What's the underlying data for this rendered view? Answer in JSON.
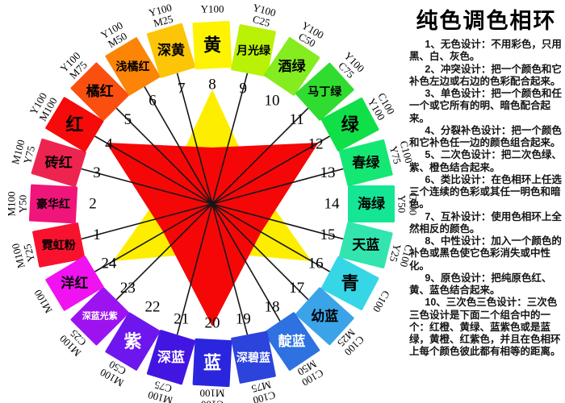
{
  "panel": {
    "title": "纯色调色相环",
    "items": [
      "1、无色设计：不用彩色，只用黑、白、灰色。",
      "2、冲突设计：把一个颜色和它补色左边或右边的色彩配合起来。",
      "3、单色设计：把一个颜色和任一个或它所有的明、暗色配合起来。",
      "4、分裂补色设计：把一个颜色和它补色任一边的颜色组合起来。",
      "5、二次色设计：把二次色绿、紫、橙色结合起来。",
      "6、类比设计：在色相环上任选三个连续的色彩或其任一明色和暗色。",
      "7、互补设计：使用色相环上全然相反的颜色。",
      "8、中性设计：加入一个颜色的补色或黑色使它色彩消失或中性化。",
      "9、原色设计：把纯原色红、黄、蓝色结合起来。",
      "10、三次色三色设计：三次色三色设计是下面二个组合中的一个：红橙、黄绿、蓝紫色或是蓝绿，黄橙、红紫色，并且在色相环上每个颜色彼此都有相等的距离。"
    ]
  },
  "wheel": {
    "line_color": "#161616",
    "swatches": [
      {
        "num": 1,
        "name": "霓虹粉",
        "code": [
          "M100",
          "Y25"
        ],
        "color": "#f8122e",
        "label_color": "#000000"
      },
      {
        "num": 2,
        "name": "豪华红",
        "code": [
          "M100",
          "Y50"
        ],
        "color": "#f0157b",
        "label_color": "#000000"
      },
      {
        "num": 3,
        "name": "砖红",
        "code": [
          "M100",
          "Y75"
        ],
        "color": "#ee2450",
        "label_color": "#000000"
      },
      {
        "num": 4,
        "name": "红",
        "code": [
          "Y100",
          "M100"
        ],
        "color": "#f70a0a",
        "label_color": "#000000"
      },
      {
        "num": 5,
        "name": "橘红",
        "code": [
          "Y100",
          "M75"
        ],
        "color": "#fa4f0f",
        "label_color": "#000000"
      },
      {
        "num": 6,
        "name": "浅橘红",
        "code": [
          "Y100",
          "M50"
        ],
        "color": "#fc8406",
        "label_color": "#000000"
      },
      {
        "num": 7,
        "name": "深黄",
        "code": [
          "Y100",
          "M25"
        ],
        "color": "#fcc508",
        "label_color": "#000000"
      },
      {
        "num": 8,
        "name": "黄",
        "code": [
          "Y100"
        ],
        "color": "#fdf303",
        "label_color": "#000000"
      },
      {
        "num": 9,
        "name": "月光绿",
        "code": [
          "Y100",
          "C25"
        ],
        "color": "#b9f205",
        "label_color": "#000000"
      },
      {
        "num": 10,
        "name": "酒绿",
        "code": [
          "Y100",
          "C50"
        ],
        "color": "#84ec1f",
        "label_color": "#000000"
      },
      {
        "num": 11,
        "name": "马丁绿",
        "code": [
          "Y100",
          "C75"
        ],
        "color": "#30dc30",
        "label_color": "#000000"
      },
      {
        "num": 12,
        "name": "绿",
        "code": [
          "C100",
          "Y100"
        ],
        "color": "#10df48",
        "label_color": "#000000"
      },
      {
        "num": 13,
        "name": "春绿",
        "code": [
          "C100",
          "Y75"
        ],
        "color": "#14e773",
        "label_color": "#000000"
      },
      {
        "num": 14,
        "name": "海绿",
        "code": [
          "C100",
          "Y50"
        ],
        "color": "#15e696",
        "label_color": "#000000"
      },
      {
        "num": 15,
        "name": "天蓝",
        "code": [
          "C100",
          "Y25"
        ],
        "color": "#32e5ae",
        "label_color": "#000000"
      },
      {
        "num": 16,
        "name": "青",
        "code": [
          "C100"
        ],
        "color": "#37d6e6",
        "label_color": "#000000"
      },
      {
        "num": 17,
        "name": "幼蓝",
        "code": [
          "C100",
          "M25"
        ],
        "color": "#3ba4e8",
        "label_color": "#000000"
      },
      {
        "num": 18,
        "name": "靛蓝",
        "code": [
          "C100",
          "M50"
        ],
        "color": "#2e71e1",
        "label_color": "#ffffff"
      },
      {
        "num": 19,
        "name": "深碧蓝",
        "code": [
          "C100",
          "M75"
        ],
        "color": "#2c43dc",
        "label_color": "#ffffff"
      },
      {
        "num": 20,
        "name": "蓝",
        "code": [
          "C100",
          "M100"
        ],
        "color": "#2a26de",
        "label_color": "#ffffff"
      },
      {
        "num": 21,
        "name": "深蓝",
        "code": [
          "M100",
          "C75"
        ],
        "color": "#4315e2",
        "label_color": "#ffffff"
      },
      {
        "num": 22,
        "name": "紫",
        "code": [
          "M100",
          "C50"
        ],
        "color": "#6d17ee",
        "label_color": "#ffffff"
      },
      {
        "num": 23,
        "name": "深蓝光紫",
        "code": [
          "M100",
          "C25"
        ],
        "color": "#9d13f0",
        "label_color": "#ffffff"
      },
      {
        "num": 24,
        "name": "洋红",
        "code": [
          "M100"
        ],
        "color": "#f012f0",
        "label_color": "#000000"
      }
    ],
    "complementary_lines": [
      [
        1,
        13
      ],
      [
        3,
        15
      ],
      [
        4,
        16
      ],
      [
        5,
        17
      ],
      [
        6,
        18
      ],
      [
        7,
        19
      ],
      [
        9,
        21
      ],
      [
        11,
        23
      ],
      [
        12,
        24
      ]
    ],
    "stars": [
      {
        "name": "yellow-triad-star",
        "color": "#fdee00",
        "tips": [
          8,
          16,
          24
        ]
      },
      {
        "name": "red-triad-star",
        "color": "#f50707",
        "tips": [
          4,
          12,
          20
        ]
      }
    ]
  }
}
